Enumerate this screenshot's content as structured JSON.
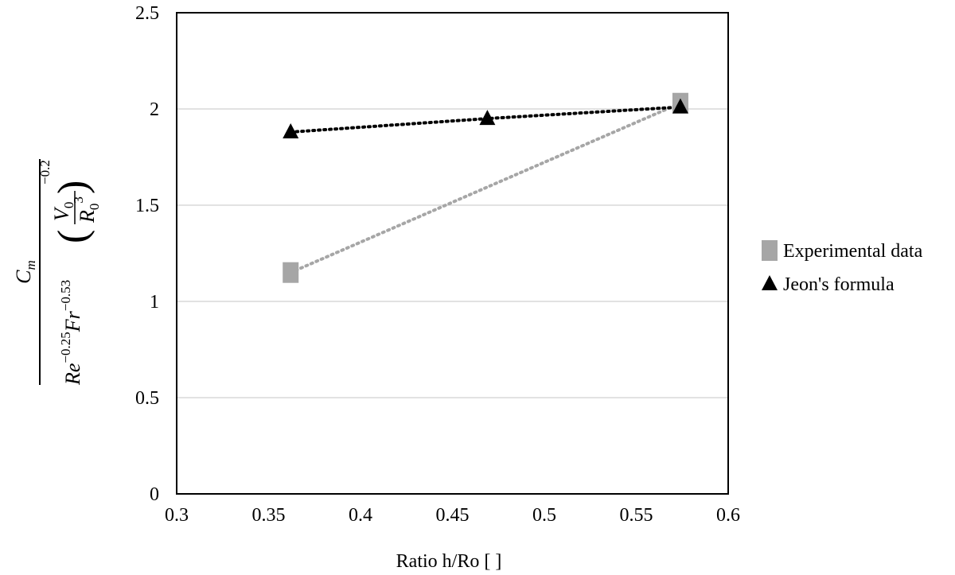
{
  "chart_data": {
    "type": "scatter",
    "xlabel": "Ratio h/Ro [ ]",
    "ylabel": {
      "numerator": "C",
      "numerator_sub": "m",
      "re": "Re",
      "re_exp": "−0.25",
      "fr": "Fr",
      "fr_exp": "−0.53",
      "v": "V",
      "v_sub": "0",
      "r": "R",
      "r_sub": "0",
      "r_exp": "3",
      "outer_exp": "−0.2"
    },
    "xlim": [
      0.3,
      0.6
    ],
    "ylim": [
      0,
      2.5
    ],
    "x_ticks": [
      "0.3",
      "0.35",
      "0.4",
      "0.45",
      "0.5",
      "0.55",
      "0.6"
    ],
    "y_ticks": [
      "0",
      "0.5",
      "1",
      "1.5",
      "2",
      "2.5"
    ],
    "grid": "horizontal",
    "legend_position": "right",
    "series": [
      {
        "name": "Experimental data",
        "marker": "square",
        "line": "dotted",
        "color": "#a6a6a6",
        "points": [
          {
            "x": 0.362,
            "y": 1.15
          },
          {
            "x": 0.574,
            "y": 2.03
          }
        ]
      },
      {
        "name": "Jeon's formula",
        "marker": "triangle",
        "line": "dotted",
        "color": "#000000",
        "points": [
          {
            "x": 0.362,
            "y": 1.88
          },
          {
            "x": 0.469,
            "y": 1.95
          },
          {
            "x": 0.574,
            "y": 2.01
          }
        ]
      }
    ]
  }
}
